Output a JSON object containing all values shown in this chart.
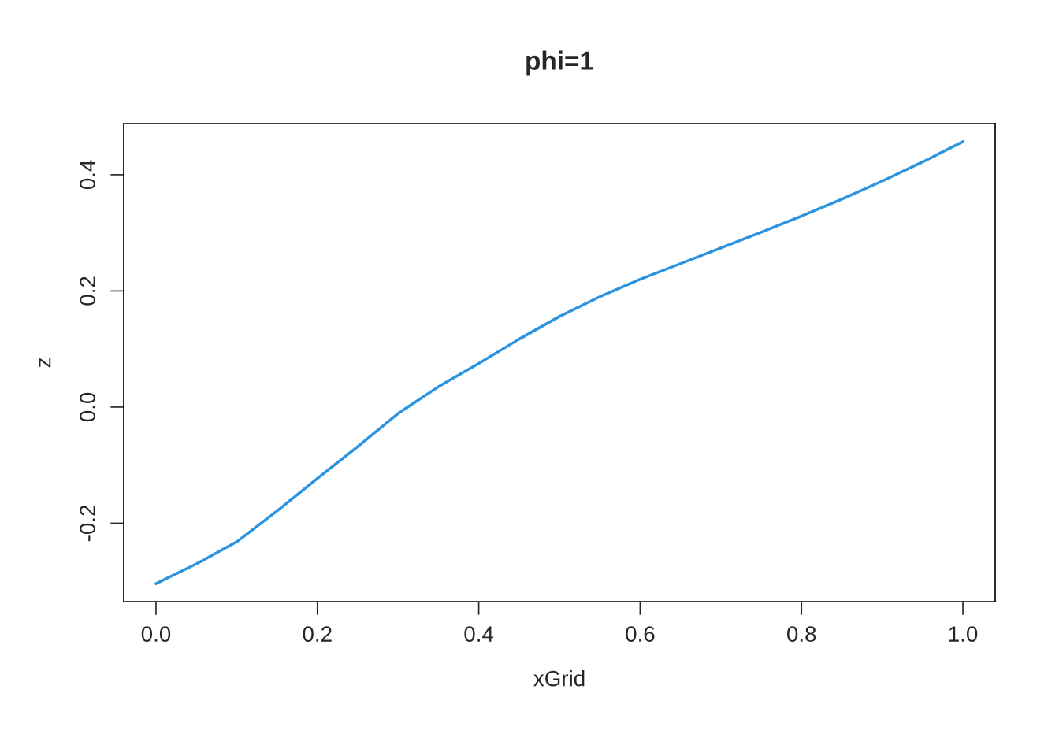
{
  "chart_data": {
    "type": "line",
    "title": "phi=1",
    "xlabel": "xGrid",
    "ylabel": "z",
    "x": [
      0,
      0.05,
      0.1,
      0.15,
      0.2,
      0.25,
      0.3,
      0.35,
      0.4,
      0.45,
      0.5,
      0.55,
      0.6,
      0.65,
      0.7,
      0.75,
      0.8,
      0.85,
      0.9,
      0.95,
      1.0
    ],
    "series": [
      {
        "color": "#2a94e0",
        "values": [
          -0.304,
          -0.27,
          -0.232,
          -0.179,
          -0.123,
          -0.068,
          -0.011,
          0.035,
          0.075,
          0.117,
          0.156,
          0.19,
          0.22,
          0.247,
          0.274,
          0.301,
          0.329,
          0.358,
          0.389,
          0.422,
          0.457
        ]
      }
    ],
    "xlim": [
      -0.04,
      1.04
    ],
    "ylim": [
      -0.335,
      0.488
    ],
    "xticks": [
      {
        "value": 0,
        "label": "0.0"
      },
      0.2,
      0.4,
      0.6,
      0.8,
      {
        "value": 1,
        "label": "1.0"
      }
    ],
    "yticks": [
      -0.2,
      {
        "value": 0,
        "label": "0.0"
      },
      0.2,
      0.4
    ],
    "grid": false,
    "legend": false,
    "marker": "none",
    "line_style": "solid"
  }
}
